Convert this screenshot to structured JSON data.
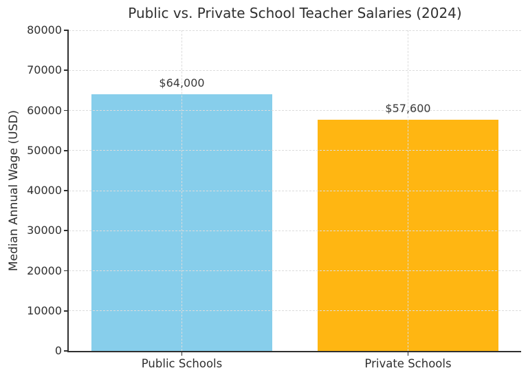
{
  "chart_data": {
    "type": "bar",
    "title": "Public vs. Private School Teacher Salaries (2024)",
    "categories": [
      "Public Schools",
      "Private Schools"
    ],
    "values": [
      64000,
      57600
    ],
    "value_labels": [
      "$64,000",
      "$57,600"
    ],
    "bar_colors": [
      "#87CEEB",
      "#FFB612"
    ],
    "xlabel": "",
    "ylabel": "Median Annual Wage (USD)",
    "ylim": [
      0,
      80000
    ],
    "yticks": [
      0,
      10000,
      20000,
      30000,
      40000,
      50000,
      60000,
      70000,
      80000
    ],
    "ytick_labels": [
      "0",
      "10000",
      "20000",
      "30000",
      "40000",
      "50000",
      "60000",
      "70000",
      "80000"
    ],
    "grid": true,
    "grid_style": "dashed",
    "grid_over_bars": true,
    "legend_position": "none",
    "bar_width_fraction": 0.8
  },
  "colors": {
    "background": "#ffffff",
    "axis": "#2f2f2f",
    "grid": "#dcdcdc",
    "text": "#2f2f2f",
    "bar_public": "#87CEEB",
    "bar_private": "#FFB612"
  }
}
